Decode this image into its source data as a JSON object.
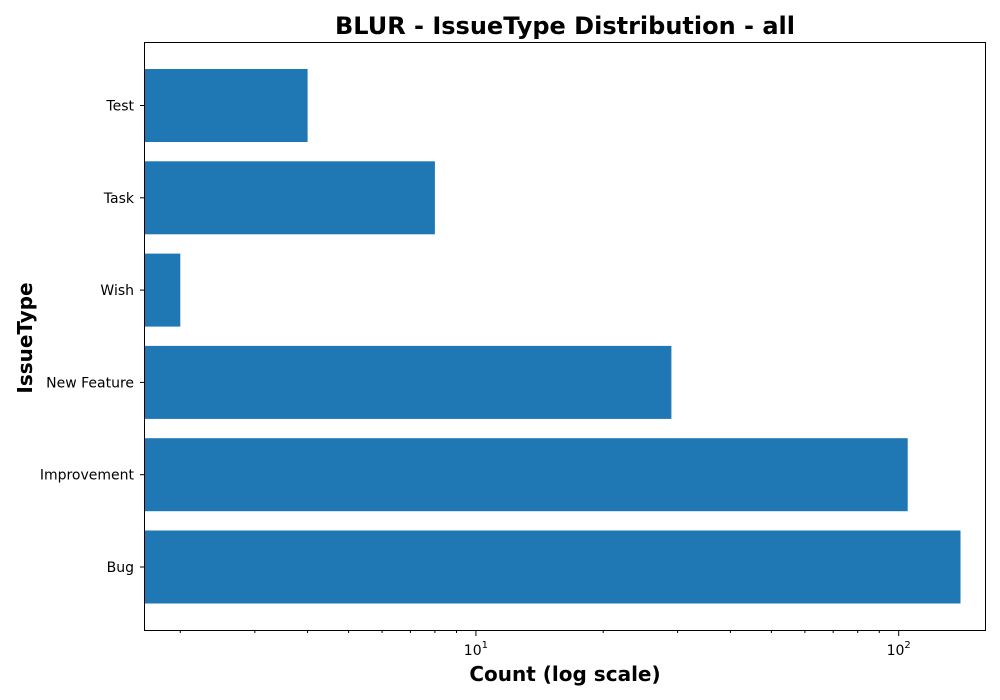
{
  "chart_data": {
    "type": "bar",
    "orientation": "horizontal",
    "title": "BLUR - IssueType Distribution - all",
    "xlabel": "Count (log scale)",
    "ylabel": "IssueType",
    "x_scale": "log",
    "xlim": [
      1.65,
      160
    ],
    "categories": [
      "Bug",
      "Improvement",
      "New Feature",
      "Wish",
      "Task",
      "Test"
    ],
    "values": [
      140,
      105,
      29,
      2,
      8,
      4
    ],
    "x_ticks": [
      {
        "value": 10,
        "base": "10",
        "exponent": "1"
      },
      {
        "value": 100,
        "base": "10",
        "exponent": "2"
      }
    ],
    "bar_color": "#1f77b4",
    "grid": false,
    "legend": "none"
  }
}
